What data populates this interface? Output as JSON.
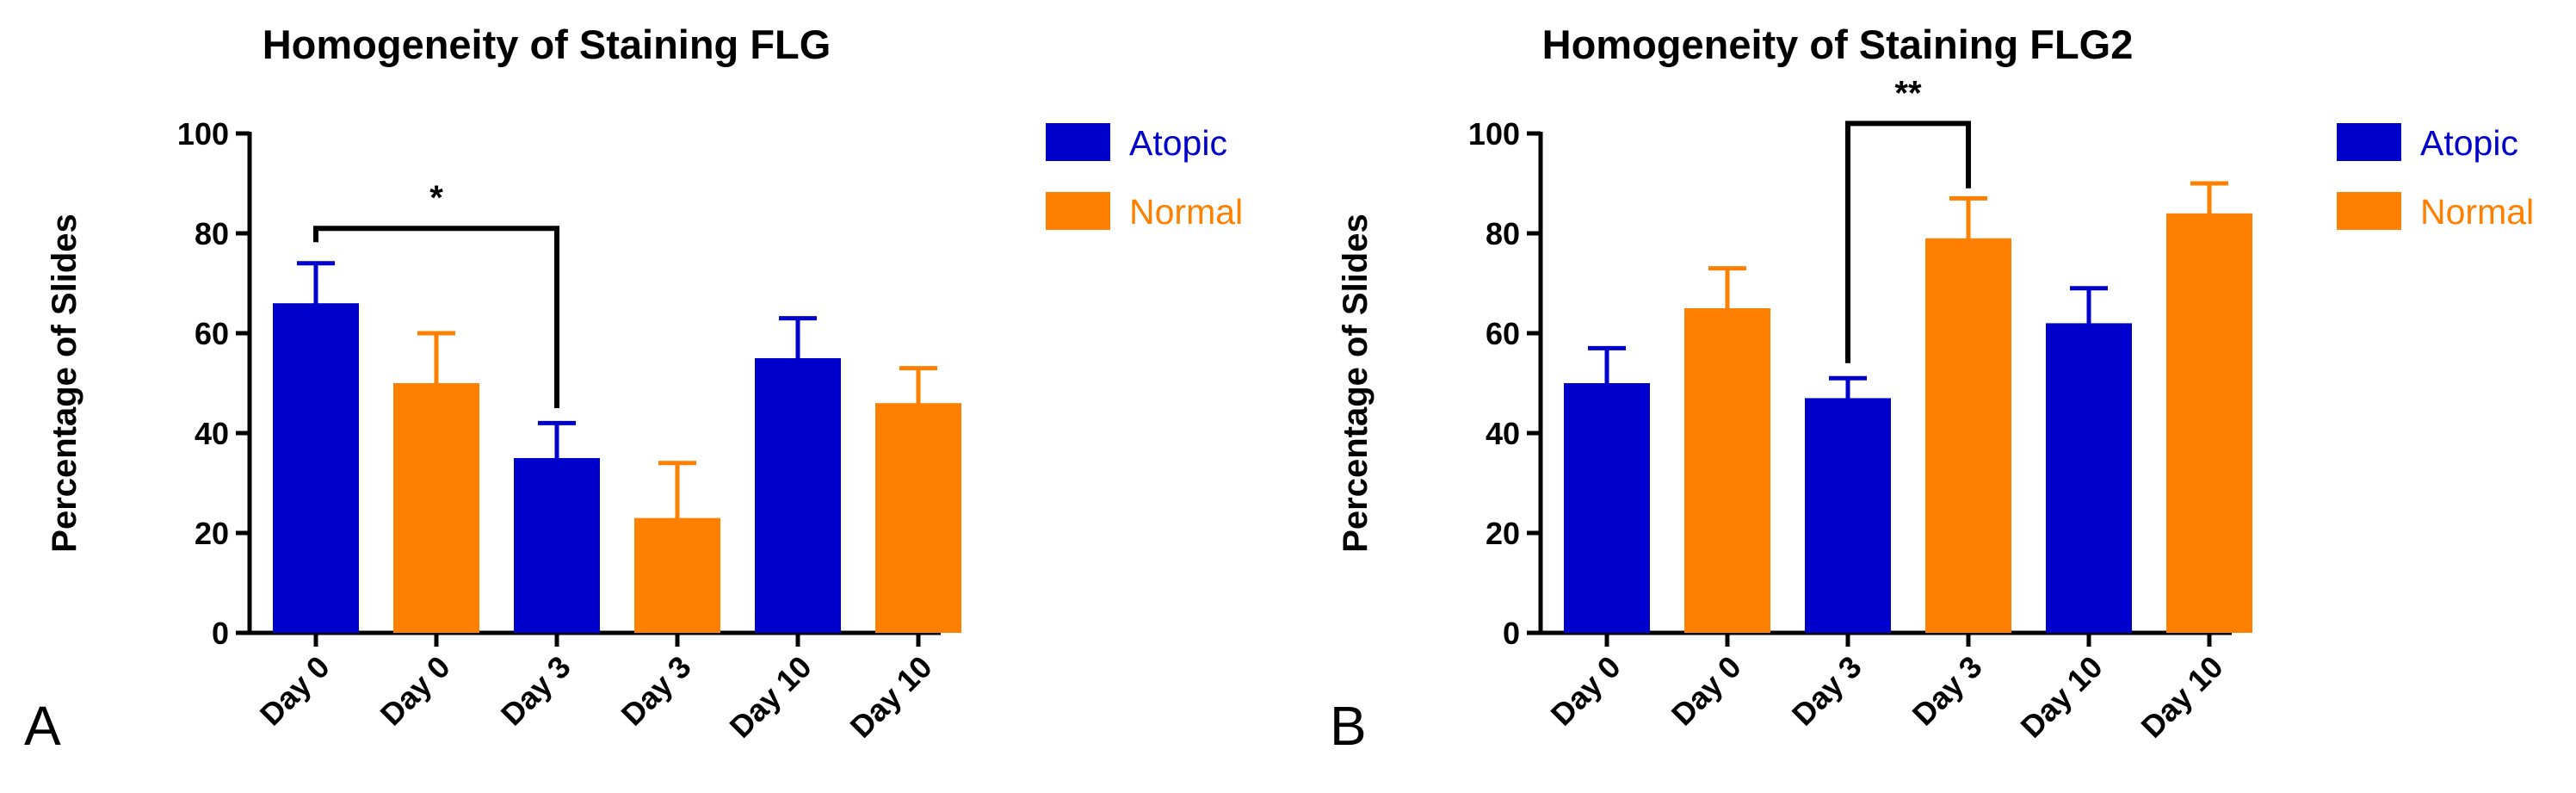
{
  "chart_data": [
    {
      "type": "bar",
      "panel_label": "A",
      "title": "Homogeneity of Staining FLG",
      "xlabel": "",
      "ylabel": "Percentage of Slides",
      "ylim": [
        0,
        100
      ],
      "yticks": [
        0,
        20,
        40,
        60,
        80,
        100
      ],
      "categories": [
        "Day 0",
        "Day 0",
        "Day 3",
        "Day 3",
        "Day 10",
        "Day 10"
      ],
      "groups": [
        "Atopic",
        "Normal",
        "Atopic",
        "Normal",
        "Atopic",
        "Normal"
      ],
      "values": [
        66,
        50,
        35,
        23,
        55,
        46
      ],
      "errors": [
        8,
        10,
        7,
        11,
        8,
        7
      ],
      "legend": [
        {
          "label": "Atopic",
          "color": "#0000cc"
        },
        {
          "label": "Normal",
          "color": "#ff8000"
        }
      ],
      "significance": {
        "from": 0,
        "to": 2,
        "y": 81,
        "label": "*"
      }
    },
    {
      "type": "bar",
      "panel_label": "B",
      "title": "Homogeneity of Staining FLG2",
      "xlabel": "",
      "ylabel": "Percentage of Slides",
      "ylim": [
        0,
        100
      ],
      "yticks": [
        0,
        20,
        40,
        60,
        80,
        100
      ],
      "categories": [
        "Day 0",
        "Day 0",
        "Day 3",
        "Day 3",
        "Day 10",
        "Day 10"
      ],
      "groups": [
        "Atopic",
        "Normal",
        "Atopic",
        "Normal",
        "Atopic",
        "Normal"
      ],
      "values": [
        50,
        65,
        47,
        79,
        62,
        84
      ],
      "errors": [
        7,
        8,
        4,
        8,
        7,
        6
      ],
      "legend": [
        {
          "label": "Atopic",
          "color": "#0000cc"
        },
        {
          "label": "Normal",
          "color": "#ff8000"
        }
      ],
      "significance": {
        "from": 2,
        "to": 3,
        "y": 102,
        "label": "**"
      }
    }
  ]
}
